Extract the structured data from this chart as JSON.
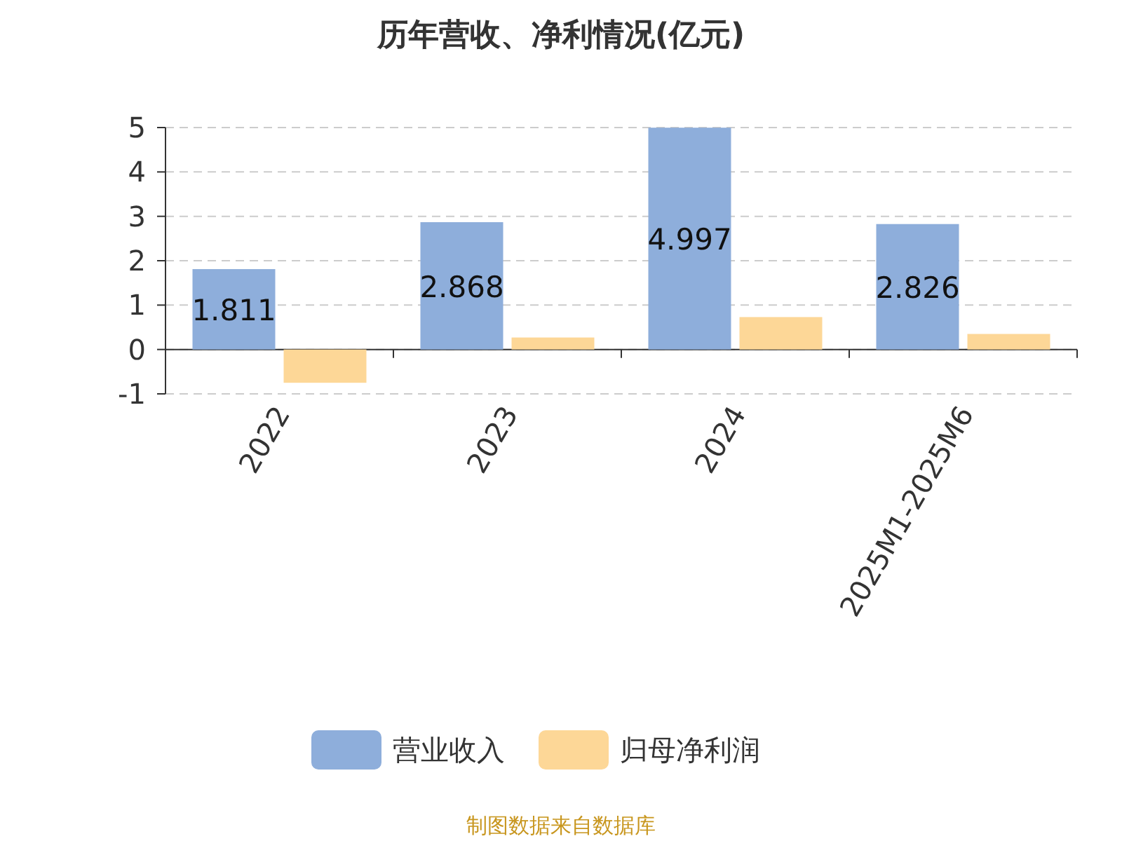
{
  "chart_data": {
    "type": "bar",
    "title": "历年营收、净利情况(亿元)",
    "categories": [
      "2022",
      "2023",
      "2024",
      "2025M1-2025M6"
    ],
    "series": [
      {
        "name": "营业收入",
        "color": "#8eaedb",
        "values": [
          1.811,
          2.868,
          4.997,
          2.826
        ],
        "value_labels": [
          "1.811",
          "2.868",
          "4.997",
          "2.826"
        ]
      },
      {
        "name": "归母净利润",
        "color": "#fdd797",
        "values": [
          -0.75,
          0.27,
          0.73,
          0.35
        ]
      }
    ],
    "ylim": [
      -1,
      5
    ],
    "yticks": [
      -1,
      0,
      1,
      2,
      3,
      4,
      5
    ],
    "grid": "y",
    "legend": "bottom",
    "annotations": [
      "制图数据来自数据库"
    ]
  }
}
